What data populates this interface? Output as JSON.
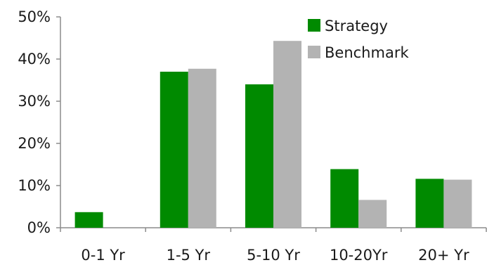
{
  "chart_data": {
    "type": "bar",
    "categories": [
      "0-1 Yr",
      "1-5 Yr",
      "5-10 Yr",
      "10-20Yr",
      "20+ Yr"
    ],
    "series": [
      {
        "name": "Strategy",
        "values": [
          3.7,
          37.0,
          34.0,
          13.9,
          11.6
        ]
      },
      {
        "name": "Benchmark",
        "values": [
          0.0,
          37.7,
          44.3,
          6.6,
          11.4
        ]
      }
    ],
    "ylim": [
      0,
      50
    ],
    "yticks": [
      0,
      10,
      20,
      30,
      40,
      50
    ],
    "ytick_labels": [
      "0%",
      "10%",
      "20%",
      "30%",
      "40%",
      "50%"
    ],
    "legend_position": "top-right",
    "grid": false
  },
  "colors": {
    "Strategy": "#008a00",
    "Benchmark": "#b3b3b3",
    "axis": "#8c8c8c"
  }
}
